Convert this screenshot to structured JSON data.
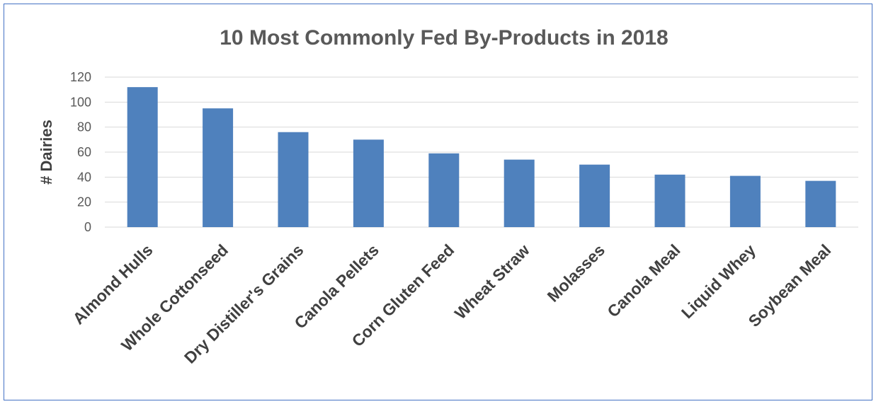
{
  "chart_data": {
    "type": "bar",
    "title": "10 Most Commonly Fed By-Products in 2018",
    "xlabel": "",
    "ylabel": "# Dairies",
    "ylim": [
      0,
      120
    ],
    "yticks": [
      0,
      20,
      40,
      60,
      80,
      100,
      120
    ],
    "grid": true,
    "categories": [
      "Almond Hulls",
      "Whole Cottonseed",
      "Dry Distiller's Grains",
      "Canola Pellets",
      "Corn Gluten Feed",
      "Wheat Straw",
      "Molasses",
      "Canola Meal",
      "Liquid Whey",
      "Soybean Meal"
    ],
    "values": [
      112,
      95,
      76,
      70,
      59,
      54,
      50,
      42,
      41,
      37
    ],
    "colors": {
      "bar": "#4f81bd",
      "grid": "#d9d9d9",
      "border": "#4472c4"
    }
  }
}
